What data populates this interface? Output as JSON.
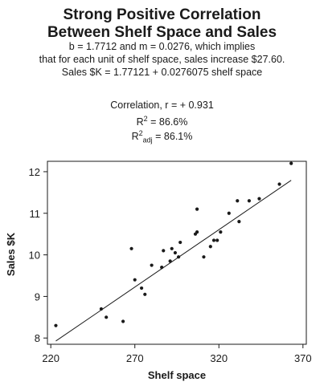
{
  "header": {
    "title_line1": "Strong Positive Correlation",
    "title_line2": "Between Shelf Space and Sales",
    "sub_line1": "b = 1.7712 and m = 0.0276, which implies",
    "sub_line2": "that for each unit of shelf space, sales increase $27.60.",
    "sub_line3": "Sales $K = 1.77121 + 0.0276075 shelf space"
  },
  "stats": {
    "correlation": "Correlation, r = + 0.931",
    "r2_base": "R",
    "r2_exp": "2",
    "r2_value": " = 86.6%",
    "r2adj_base": "R",
    "r2adj_exp": "2",
    "r2adj_sub": "adj",
    "r2adj_value": " = 86.1%"
  },
  "chart_data": {
    "type": "scatter",
    "title": "Strong Positive Correlation Between Shelf Space and Sales",
    "xlabel": "Shelf space",
    "ylabel": "Sales $K",
    "xlim": [
      218,
      372
    ],
    "ylim": [
      7.85,
      12.25
    ],
    "xticks": [
      220,
      270,
      320,
      370
    ],
    "yticks": [
      8,
      9,
      10,
      11,
      12
    ],
    "grid": false,
    "regression": {
      "intercept": 1.77121,
      "slope": 0.0276075,
      "x_range": [
        223,
        363
      ]
    },
    "points": [
      {
        "x": 223,
        "y": 8.3
      },
      {
        "x": 250,
        "y": 8.7
      },
      {
        "x": 253,
        "y": 8.5
      },
      {
        "x": 263,
        "y": 8.4
      },
      {
        "x": 268,
        "y": 10.15
      },
      {
        "x": 270,
        "y": 9.4
      },
      {
        "x": 274,
        "y": 9.2
      },
      {
        "x": 276,
        "y": 9.05
      },
      {
        "x": 280,
        "y": 9.75
      },
      {
        "x": 286,
        "y": 9.7
      },
      {
        "x": 287,
        "y": 10.1
      },
      {
        "x": 291,
        "y": 9.85
      },
      {
        "x": 292,
        "y": 10.15
      },
      {
        "x": 294,
        "y": 10.05
      },
      {
        "x": 296,
        "y": 9.95
      },
      {
        "x": 297,
        "y": 10.3
      },
      {
        "x": 306,
        "y": 10.5
      },
      {
        "x": 307,
        "y": 10.55
      },
      {
        "x": 307,
        "y": 11.1
      },
      {
        "x": 311,
        "y": 9.95
      },
      {
        "x": 315,
        "y": 10.2
      },
      {
        "x": 317,
        "y": 10.35
      },
      {
        "x": 319,
        "y": 10.35
      },
      {
        "x": 321,
        "y": 10.55
      },
      {
        "x": 326,
        "y": 11.0
      },
      {
        "x": 331,
        "y": 11.3
      },
      {
        "x": 332,
        "y": 10.8
      },
      {
        "x": 338,
        "y": 11.3
      },
      {
        "x": 344,
        "y": 11.35
      },
      {
        "x": 356,
        "y": 11.7
      },
      {
        "x": 363,
        "y": 12.2
      }
    ]
  },
  "colors": {
    "ink": "#1a1a1a",
    "background": "#ffffff"
  }
}
